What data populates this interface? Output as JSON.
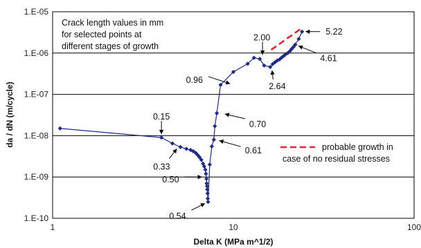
{
  "chart_data": {
    "type": "scatter",
    "title": "",
    "xlabel": "Delta K  (MPa m^1/2)",
    "ylabel": "da / dN  (m/cycle)",
    "x_scale": "log",
    "y_scale": "log",
    "xlim": [
      1,
      100
    ],
    "ylim": [
      1e-10,
      1e-05
    ],
    "x_ticks": [
      "1",
      "10",
      "100"
    ],
    "y_ticks": [
      "1.E-10",
      "1.E-09",
      "1.E-08",
      "1.E-07",
      "1.E-06",
      "1.E-05"
    ],
    "grid": "horizontal",
    "colors": {
      "series": "#1f2a8a",
      "dashed": "#e8232b",
      "grid": "#000000",
      "text": "#111111"
    },
    "note": [
      "Crack length values in mm",
      "for selected points at",
      "different stages of growth"
    ],
    "series": [
      {
        "x": [
          1.1,
          4.0,
          4.6,
          5.1,
          5.5,
          5.8,
          6.0,
          6.2,
          6.35,
          6.5,
          6.65,
          6.8,
          6.9,
          7.0,
          7.05,
          7.1,
          7.12,
          7.15,
          7.17,
          7.2,
          7.22,
          7.25,
          7.4,
          7.6,
          7.8,
          7.9,
          8.1,
          8.5,
          10.0,
          12.0,
          13.0,
          14.0,
          14.8,
          16.0,
          16.5,
          17.0,
          17.5,
          18.0,
          18.5,
          19.0,
          19.5,
          20.0,
          20.5,
          21.0,
          21.5,
          22.0,
          23.0,
          24.0
        ],
        "y": [
          1.5e-08,
          9e-09,
          6.5e-09,
          5.3e-09,
          4.8e-09,
          4.5e-09,
          4.2e-09,
          3.8e-09,
          3.4e-09,
          3e-09,
          2.6e-09,
          2.1e-09,
          1.8e-09,
          1.5e-09,
          1.2e-09,
          9e-10,
          7e-10,
          6e-10,
          5e-10,
          4e-10,
          3e-10,
          2.5e-10,
          2e-09,
          5.5e-09,
          8e-09,
          1.7e-08,
          3.5e-08,
          1.7e-07,
          3.5e-07,
          5.5e-07,
          7.7e-07,
          7.2e-07,
          5e-07,
          4.6e-07,
          5.4e-07,
          6e-07,
          6.6e-07,
          7e-07,
          7.8e-07,
          8.5e-07,
          9.4e-07,
          1e-06,
          1.1e-06,
          1.25e-06,
          1.4e-06,
          1.6e-06,
          2.2e-06,
          3.3e-06
        ]
      }
    ],
    "annotations": [
      {
        "label": "0.15",
        "x": 4.0,
        "y": 9e-09
      },
      {
        "label": "0.33",
        "x": 5.0,
        "y": 5.6e-09
      },
      {
        "label": "0.50",
        "x": 7.0,
        "y": 1e-09
      },
      {
        "label": "0.54",
        "x": 7.25,
        "y": 2.5e-10
      },
      {
        "label": "0.61",
        "x": 8.0,
        "y": 8e-09
      },
      {
        "label": "0.70",
        "x": 8.6,
        "y": 3.5e-08
      },
      {
        "label": "0.96",
        "x": 10.0,
        "y": 1.7e-07
      },
      {
        "label": "2.00",
        "x": 14.5,
        "y": 7.5e-07
      },
      {
        "label": "2.64",
        "x": 16.3,
        "y": 4.6e-07
      },
      {
        "label": "4.61",
        "x": 22.0,
        "y": 1.6e-06
      },
      {
        "label": "5.22",
        "x": 24.0,
        "y": 3.3e-06
      }
    ],
    "dashed_line": {
      "x": [
        16.2,
        23.5
      ],
      "y": [
        1.2e-06,
        3.8e-06
      ]
    },
    "legend": {
      "label_line1": "probable growth in",
      "label_line2": "case of no residual stresses",
      "placement": "right"
    }
  }
}
